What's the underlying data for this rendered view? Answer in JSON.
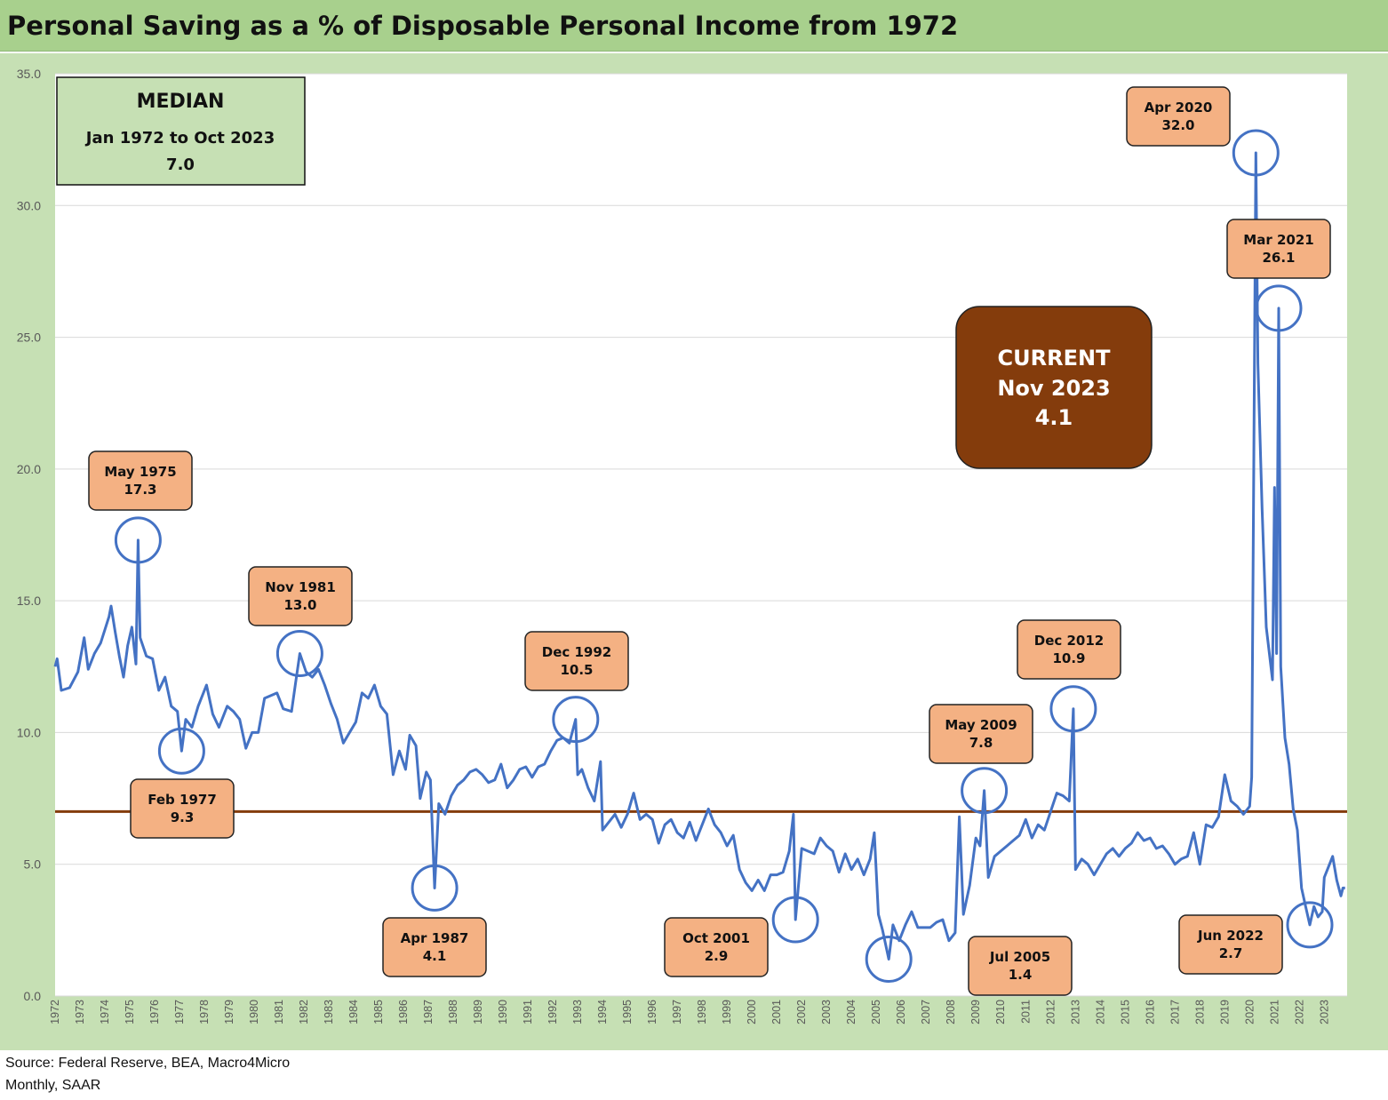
{
  "title": "Personal Saving as a % of Disposable Personal Income from 1972",
  "footer": {
    "source": "Source: Federal Reserve, BEA, Macro4Micro",
    "note": "Monthly, SAAR"
  },
  "colors": {
    "header_bg": "#a8d08d",
    "frame_bg": "#c6e0b4",
    "line": "#4472c4",
    "median_line": "#843c0c",
    "callout_fill": "#f4b183",
    "current_fill": "#843c0c",
    "circle": "#4472c4"
  },
  "median_box": {
    "line1": "MEDIAN",
    "line2": "Jan 1972 to Oct 2023",
    "line3": "7.0"
  },
  "current_box": {
    "line1": "CURRENT",
    "line2": "Nov 2023",
    "line3": "4.1"
  },
  "annotations": [
    {
      "label": "May 1975",
      "value": "17.3"
    },
    {
      "label": "Feb 1977",
      "value": "9.3"
    },
    {
      "label": "Nov 1981",
      "value": "13.0"
    },
    {
      "label": "Apr 1987",
      "value": "4.1"
    },
    {
      "label": "Dec 1992",
      "value": "10.5"
    },
    {
      "label": "Oct 2001",
      "value": "2.9"
    },
    {
      "label": "Jul 2005",
      "value": "1.4"
    },
    {
      "label": "May 2009",
      "value": "7.8"
    },
    {
      "label": "Dec 2012",
      "value": "10.9"
    },
    {
      "label": "Apr 2020",
      "value": "32.0"
    },
    {
      "label": "Mar 2021",
      "value": "26.1"
    },
    {
      "label": "Jun 2022",
      "value": "2.7"
    }
  ],
  "chart_data": {
    "type": "line",
    "title": "Personal Saving as a % of Disposable Personal Income from 1972",
    "xlabel": "",
    "ylabel": "",
    "ylim": [
      0,
      35
    ],
    "yticks": [
      "0.0",
      "5.0",
      "10.0",
      "15.0",
      "20.0",
      "25.0",
      "30.0",
      "35.0"
    ],
    "xticks": [
      "1972",
      "1973",
      "1974",
      "1975",
      "1976",
      "1977",
      "1978",
      "1979",
      "1980",
      "1981",
      "1982",
      "1983",
      "1984",
      "1985",
      "1986",
      "1987",
      "1988",
      "1989",
      "1990",
      "1991",
      "1992",
      "1993",
      "1994",
      "1995",
      "1996",
      "1997",
      "1998",
      "1999",
      "2000",
      "2001",
      "2002",
      "2003",
      "2004",
      "2005",
      "2006",
      "2007",
      "2008",
      "2009",
      "2010",
      "2011",
      "2012",
      "2013",
      "2014",
      "2015",
      "2016",
      "2017",
      "2018",
      "2019",
      "2020",
      "2021",
      "2022",
      "2023"
    ],
    "grid": true,
    "legend": "none",
    "median": 7.0,
    "series": [
      {
        "points": [
          [
            "1972-01",
            12.5
          ],
          [
            "1972-02",
            12.8
          ],
          [
            "1972-04",
            11.6
          ],
          [
            "1972-08",
            11.7
          ],
          [
            "1972-12",
            12.3
          ],
          [
            "1973-03",
            13.6
          ],
          [
            "1973-05",
            12.4
          ],
          [
            "1973-08",
            13.0
          ],
          [
            "1973-11",
            13.4
          ],
          [
            "1974-01",
            13.9
          ],
          [
            "1974-03",
            14.4
          ],
          [
            "1974-04",
            14.8
          ],
          [
            "1974-06",
            13.8
          ],
          [
            "1974-08",
            12.9
          ],
          [
            "1974-10",
            12.1
          ],
          [
            "1974-12",
            13.3
          ],
          [
            "1975-02",
            14.0
          ],
          [
            "1975-04",
            12.6
          ],
          [
            "1975-05",
            17.3
          ],
          [
            "1975-06",
            13.6
          ],
          [
            "1975-09",
            12.9
          ],
          [
            "1975-12",
            12.8
          ],
          [
            "1976-03",
            11.6
          ],
          [
            "1976-06",
            12.1
          ],
          [
            "1976-09",
            11.0
          ],
          [
            "1976-12",
            10.8
          ],
          [
            "1977-02",
            9.3
          ],
          [
            "1977-04",
            10.5
          ],
          [
            "1977-07",
            10.2
          ],
          [
            "1977-10",
            11.0
          ],
          [
            "1978-02",
            11.8
          ],
          [
            "1978-05",
            10.7
          ],
          [
            "1978-08",
            10.2
          ],
          [
            "1978-12",
            11.0
          ],
          [
            "1979-03",
            10.8
          ],
          [
            "1979-06",
            10.5
          ],
          [
            "1979-09",
            9.4
          ],
          [
            "1979-12",
            10.0
          ],
          [
            "1980-03",
            10.0
          ],
          [
            "1980-06",
            11.3
          ],
          [
            "1980-09",
            11.4
          ],
          [
            "1980-12",
            11.5
          ],
          [
            "1981-03",
            10.9
          ],
          [
            "1981-07",
            10.8
          ],
          [
            "1981-09",
            11.9
          ],
          [
            "1981-11",
            13.0
          ],
          [
            "1982-02",
            12.3
          ],
          [
            "1982-05",
            12.1
          ],
          [
            "1982-08",
            12.4
          ],
          [
            "1982-11",
            11.8
          ],
          [
            "1983-02",
            11.1
          ],
          [
            "1983-05",
            10.5
          ],
          [
            "1983-08",
            9.6
          ],
          [
            "1983-11",
            10.0
          ],
          [
            "1984-02",
            10.4
          ],
          [
            "1984-05",
            11.5
          ],
          [
            "1984-08",
            11.3
          ],
          [
            "1984-11",
            11.8
          ],
          [
            "1985-02",
            11.0
          ],
          [
            "1985-05",
            10.7
          ],
          [
            "1985-08",
            8.4
          ],
          [
            "1985-11",
            9.3
          ],
          [
            "1986-02",
            8.6
          ],
          [
            "1986-04",
            9.9
          ],
          [
            "1986-07",
            9.5
          ],
          [
            "1986-09",
            7.5
          ],
          [
            "1986-12",
            8.5
          ],
          [
            "1987-02",
            8.2
          ],
          [
            "1987-04",
            4.1
          ],
          [
            "1987-06",
            7.3
          ],
          [
            "1987-09",
            6.9
          ],
          [
            "1987-12",
            7.6
          ],
          [
            "1988-03",
            8.0
          ],
          [
            "1988-06",
            8.2
          ],
          [
            "1988-09",
            8.5
          ],
          [
            "1988-12",
            8.6
          ],
          [
            "1989-03",
            8.4
          ],
          [
            "1989-06",
            8.1
          ],
          [
            "1989-09",
            8.2
          ],
          [
            "1989-12",
            8.8
          ],
          [
            "1990-03",
            7.9
          ],
          [
            "1990-06",
            8.2
          ],
          [
            "1990-09",
            8.6
          ],
          [
            "1990-12",
            8.7
          ],
          [
            "1991-03",
            8.3
          ],
          [
            "1991-06",
            8.7
          ],
          [
            "1991-09",
            8.8
          ],
          [
            "1991-12",
            9.3
          ],
          [
            "1992-03",
            9.7
          ],
          [
            "1992-06",
            9.8
          ],
          [
            "1992-09",
            9.6
          ],
          [
            "1992-12",
            10.5
          ],
          [
            "1993-01",
            8.4
          ],
          [
            "1993-03",
            8.6
          ],
          [
            "1993-06",
            7.9
          ],
          [
            "1993-09",
            7.4
          ],
          [
            "1993-12",
            8.9
          ],
          [
            "1994-01",
            6.3
          ],
          [
            "1994-04",
            6.6
          ],
          [
            "1994-07",
            6.9
          ],
          [
            "1994-10",
            6.4
          ],
          [
            "1995-01",
            6.9
          ],
          [
            "1995-04",
            7.7
          ],
          [
            "1995-07",
            6.7
          ],
          [
            "1995-10",
            6.9
          ],
          [
            "1996-01",
            6.7
          ],
          [
            "1996-04",
            5.8
          ],
          [
            "1996-07",
            6.5
          ],
          [
            "1996-10",
            6.7
          ],
          [
            "1997-01",
            6.2
          ],
          [
            "1997-04",
            6.0
          ],
          [
            "1997-07",
            6.6
          ],
          [
            "1997-10",
            5.9
          ],
          [
            "1998-01",
            6.5
          ],
          [
            "1998-04",
            7.1
          ],
          [
            "1998-07",
            6.5
          ],
          [
            "1998-10",
            6.2
          ],
          [
            "1999-01",
            5.7
          ],
          [
            "1999-04",
            6.1
          ],
          [
            "1999-07",
            4.8
          ],
          [
            "1999-10",
            4.3
          ],
          [
            "2000-01",
            4.0
          ],
          [
            "2000-04",
            4.4
          ],
          [
            "2000-07",
            4.0
          ],
          [
            "2000-10",
            4.6
          ],
          [
            "2001-01",
            4.6
          ],
          [
            "2001-04",
            4.7
          ],
          [
            "2001-07",
            5.5
          ],
          [
            "2001-09",
            6.9
          ],
          [
            "2001-10",
            2.9
          ],
          [
            "2002-01",
            5.6
          ],
          [
            "2002-04",
            5.5
          ],
          [
            "2002-07",
            5.4
          ],
          [
            "2002-10",
            6.0
          ],
          [
            "2003-01",
            5.7
          ],
          [
            "2003-04",
            5.5
          ],
          [
            "2003-07",
            4.7
          ],
          [
            "2003-10",
            5.4
          ],
          [
            "2004-01",
            4.8
          ],
          [
            "2004-04",
            5.2
          ],
          [
            "2004-07",
            4.6
          ],
          [
            "2004-10",
            5.2
          ],
          [
            "2004-12",
            6.2
          ],
          [
            "2005-02",
            3.1
          ],
          [
            "2005-04",
            2.5
          ],
          [
            "2005-07",
            1.4
          ],
          [
            "2005-09",
            2.7
          ],
          [
            "2005-12",
            2.1
          ],
          [
            "2006-03",
            2.7
          ],
          [
            "2006-06",
            3.2
          ],
          [
            "2006-09",
            2.6
          ],
          [
            "2006-12",
            2.6
          ],
          [
            "2007-03",
            2.6
          ],
          [
            "2007-06",
            2.8
          ],
          [
            "2007-09",
            2.9
          ],
          [
            "2007-12",
            2.1
          ],
          [
            "2008-03",
            2.4
          ],
          [
            "2008-05",
            6.8
          ],
          [
            "2008-07",
            3.1
          ],
          [
            "2008-10",
            4.2
          ],
          [
            "2009-01",
            6.0
          ],
          [
            "2009-03",
            5.7
          ],
          [
            "2009-05",
            7.8
          ],
          [
            "2009-07",
            4.5
          ],
          [
            "2009-10",
            5.3
          ],
          [
            "2010-01",
            5.5
          ],
          [
            "2010-04",
            5.7
          ],
          [
            "2010-07",
            5.9
          ],
          [
            "2010-10",
            6.1
          ],
          [
            "2011-01",
            6.7
          ],
          [
            "2011-04",
            6.0
          ],
          [
            "2011-07",
            6.5
          ],
          [
            "2011-10",
            6.3
          ],
          [
            "2012-01",
            7.0
          ],
          [
            "2012-04",
            7.7
          ],
          [
            "2012-07",
            7.6
          ],
          [
            "2012-10",
            7.4
          ],
          [
            "2012-12",
            10.9
          ],
          [
            "2013-01",
            4.8
          ],
          [
            "2013-04",
            5.2
          ],
          [
            "2013-07",
            5.0
          ],
          [
            "2013-10",
            4.6
          ],
          [
            "2014-01",
            5.0
          ],
          [
            "2014-04",
            5.4
          ],
          [
            "2014-07",
            5.6
          ],
          [
            "2014-10",
            5.3
          ],
          [
            "2015-01",
            5.6
          ],
          [
            "2015-04",
            5.8
          ],
          [
            "2015-07",
            6.2
          ],
          [
            "2015-10",
            5.9
          ],
          [
            "2016-01",
            6.0
          ],
          [
            "2016-04",
            5.6
          ],
          [
            "2016-07",
            5.7
          ],
          [
            "2016-10",
            5.4
          ],
          [
            "2017-01",
            5.0
          ],
          [
            "2017-04",
            5.2
          ],
          [
            "2017-07",
            5.3
          ],
          [
            "2017-10",
            6.2
          ],
          [
            "2018-01",
            5.0
          ],
          [
            "2018-04",
            6.5
          ],
          [
            "2018-07",
            6.4
          ],
          [
            "2018-10",
            6.8
          ],
          [
            "2019-01",
            8.4
          ],
          [
            "2019-04",
            7.4
          ],
          [
            "2019-07",
            7.2
          ],
          [
            "2019-10",
            6.9
          ],
          [
            "2020-01",
            7.2
          ],
          [
            "2020-02",
            8.3
          ],
          [
            "2020-04",
            32.0
          ],
          [
            "2020-05",
            24.0
          ],
          [
            "2020-07",
            18.5
          ],
          [
            "2020-09",
            14.0
          ],
          [
            "2020-12",
            12.0
          ],
          [
            "2021-01",
            19.3
          ],
          [
            "2021-02",
            13.0
          ],
          [
            "2021-03",
            26.1
          ],
          [
            "2021-04",
            12.5
          ],
          [
            "2021-06",
            9.8
          ],
          [
            "2021-08",
            8.8
          ],
          [
            "2021-10",
            7.1
          ],
          [
            "2021-12",
            6.3
          ],
          [
            "2022-02",
            4.1
          ],
          [
            "2022-04",
            3.4
          ],
          [
            "2022-06",
            2.7
          ],
          [
            "2022-08",
            3.4
          ],
          [
            "2022-10",
            3.0
          ],
          [
            "2022-12",
            3.2
          ],
          [
            "2023-01",
            4.5
          ],
          [
            "2023-03",
            4.9
          ],
          [
            "2023-05",
            5.3
          ],
          [
            "2023-07",
            4.4
          ],
          [
            "2023-09",
            3.8
          ],
          [
            "2023-10",
            4.1
          ],
          [
            "2023-11",
            4.1
          ]
        ]
      }
    ]
  }
}
